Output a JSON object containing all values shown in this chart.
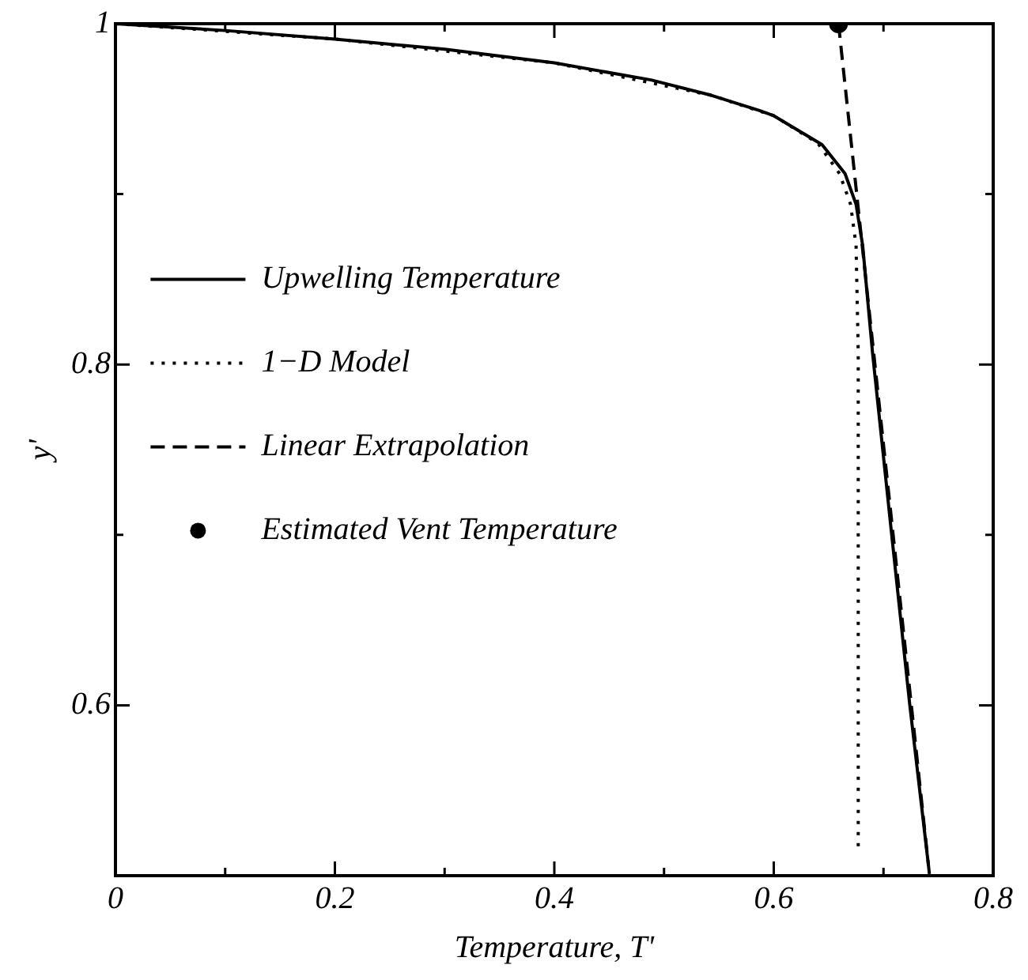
{
  "chart_data": {
    "type": "line",
    "xlabel": "Temperature, T'",
    "ylabel": "y'",
    "xlim": [
      0,
      0.8
    ],
    "ylim": [
      0.5,
      1
    ],
    "xticks": [
      0,
      {
        "value": 0.1,
        "label": null
      },
      0.2,
      {
        "value": 0.3,
        "label": null
      },
      0.4,
      {
        "value": 0.5,
        "label": null
      },
      0.6,
      {
        "value": 0.7,
        "label": null
      },
      0.8
    ],
    "yticks": [
      {
        "value": 0.5,
        "label": null
      },
      0.6,
      {
        "value": 0.7,
        "label": null
      },
      0.8,
      {
        "value": 0.9,
        "label": null
      },
      1
    ],
    "grid": false,
    "legend": "left",
    "series": [
      {
        "name": "Upwelling Temperature",
        "color": "#000000",
        "line_style": "solid",
        "marker": "none",
        "x": [
          0,
          0.1,
          0.2,
          0.3,
          0.4,
          0.488,
          0.543,
          0.587,
          0.6,
          0.644,
          0.665,
          0.675,
          0.681,
          0.69,
          0.707,
          0.724,
          0.741
        ],
        "values": [
          1,
          0.996,
          0.991,
          0.985,
          0.977,
          0.967,
          0.958,
          0.949,
          0.946,
          0.929,
          0.912,
          0.894,
          0.87,
          0.807,
          0.703,
          0.6,
          0.506
        ]
      },
      {
        "name": "1−D Model",
        "color": "#000000",
        "line_style": "dotted",
        "marker": "none",
        "x": [
          0,
          0.2,
          0.4,
          0.543,
          0.6,
          0.64,
          0.66,
          0.67,
          0.675,
          0.677,
          0.677
        ],
        "values": [
          1,
          0.991,
          0.977,
          0.958,
          0.946,
          0.93,
          0.912,
          0.894,
          0.87,
          0.807,
          0.514
        ]
      },
      {
        "name": "Linear Extrapolation",
        "color": "#000000",
        "line_style": "dashed",
        "marker": "none",
        "x": [
          0.659,
          0.742
        ],
        "values": [
          1,
          0.5
        ]
      },
      {
        "name": "Estimated Vent Temperature",
        "type": "scatter",
        "color": "#000000",
        "marker": "circle",
        "x": [
          0.659
        ],
        "values": [
          1
        ]
      }
    ]
  }
}
